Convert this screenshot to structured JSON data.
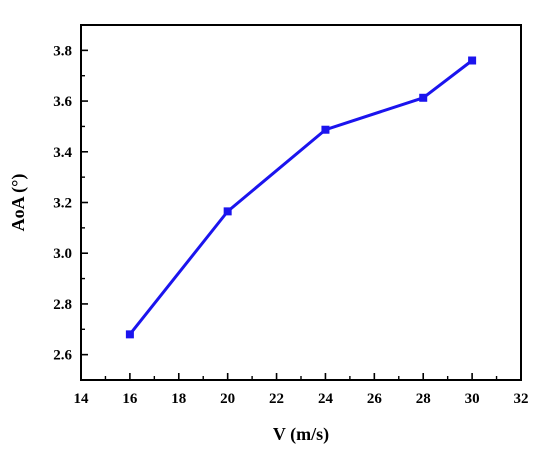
{
  "chart_data": {
    "type": "line",
    "title": "",
    "xlabel": "V (m/s)",
    "ylabel": "AoA (°)",
    "xlim": [
      14,
      32
    ],
    "ylim": [
      2.5,
      3.9
    ],
    "x_ticks": [
      "14",
      "16",
      "18",
      "20",
      "22",
      "24",
      "26",
      "28",
      "30",
      "32"
    ],
    "y_ticks": [
      "2.6",
      "2.8",
      "3.0",
      "3.2",
      "3.4",
      "3.6",
      "3.8"
    ],
    "grid": false,
    "legend": "none",
    "marker": "square",
    "series": [
      {
        "x": [
          16,
          20,
          24,
          28,
          30
        ],
        "y": [
          2.68,
          3.165,
          3.487,
          3.613,
          3.76
        ]
      }
    ],
    "colors": {
      "line": "#1b14ee",
      "axes": "#000000",
      "background": "#ffffff"
    }
  }
}
